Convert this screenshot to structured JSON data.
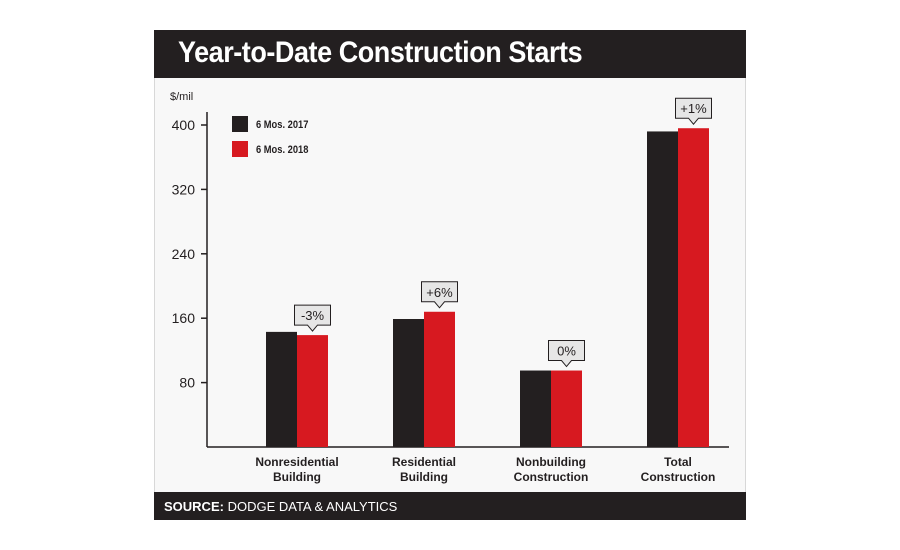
{
  "title": "Year-to-Date Construction Starts",
  "source": {
    "label": "SOURCE:",
    "text": "DODGE DATA & ANALYTICS"
  },
  "colors": {
    "series_2017": "#231f20",
    "series_2018": "#d71920",
    "background": "#f8f8f8",
    "header": "#231f20"
  },
  "chart_data": {
    "type": "bar",
    "ylabel": "$/mil",
    "ylim": [
      0,
      400
    ],
    "yticks": [
      80,
      160,
      240,
      320,
      400
    ],
    "grid": false,
    "legend_position": "top-left",
    "categories": [
      "Nonresidential Building",
      "Residential Building",
      "Nonbuilding Construction",
      "Total Construction"
    ],
    "category_lines": [
      [
        "Nonresidential",
        "Building"
      ],
      [
        "Residential",
        "Building"
      ],
      [
        "Nonbuilding",
        "Construction"
      ],
      [
        "Total",
        "Construction"
      ]
    ],
    "series": [
      {
        "name": "6 Mos. 2017",
        "values": [
          143,
          159,
          95,
          392
        ]
      },
      {
        "name": "6 Mos. 2018",
        "values": [
          139,
          168,
          95,
          396
        ]
      }
    ],
    "annotations": [
      "-3%",
      "+6%",
      "0%",
      "+1%"
    ]
  }
}
